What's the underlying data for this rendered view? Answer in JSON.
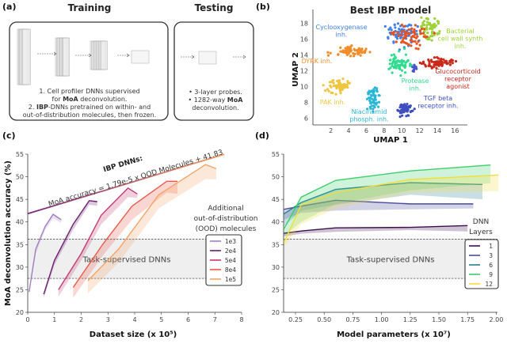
{
  "panel_labels": [
    "(a)",
    "(b)",
    "(c)",
    "(d)"
  ],
  "panel_a": {
    "training_title": "Training",
    "testing_title": "Testing",
    "training_lines": [
      [
        "1. Cell profiler DNNs supervised",
        "",
        ""
      ],
      [
        "for ",
        "MoA",
        " deconvolution."
      ],
      [
        "2. ",
        "IBP",
        "-DNNs pretrained on within- and"
      ],
      [
        "out-of-distribution molecules, then frozen.",
        "",
        ""
      ]
    ],
    "testing_lines": [
      [
        "• 3-layer probes.",
        "",
        ""
      ],
      [
        "• 1282-way ",
        "MoA",
        ""
      ],
      [
        "deconvolution.",
        "",
        ""
      ]
    ]
  },
  "chart_data": [
    {
      "panel": "b",
      "type": "scatter",
      "title": "Best IBP model",
      "xlabel": "UMAP 1",
      "ylabel": "UMAP 2",
      "xticks": [
        2,
        4,
        6,
        8,
        10,
        12,
        14,
        16
      ],
      "yticks": [
        6,
        8,
        10,
        12,
        14,
        16,
        18
      ],
      "clusters": [
        {
          "label": "Cyclooxygenase inh.",
          "lines": [
            "Cyclooxygenase",
            "inh."
          ],
          "color": "#3f80e8",
          "center": [
            10,
            16.6
          ],
          "spread": [
            1.2,
            1.1
          ],
          "n": 70
        },
        {
          "label": "Bacterial cell wall synth inh.",
          "lines": [
            "Bacterial",
            "cell wall synth",
            "inh."
          ],
          "color": "#9ed23a",
          "center": [
            13.2,
            17.3
          ],
          "spread": [
            0.9,
            1.0
          ],
          "n": 60
        },
        {
          "label": "",
          "lines": [],
          "color": "#e8521f",
          "center": [
            11,
            16.3
          ],
          "spread": [
            1.6,
            1.1
          ],
          "n": 60
        },
        {
          "label": "DYRK inh.",
          "lines": [
            "DYRK inh."
          ],
          "color": "#f28c28",
          "center": [
            4.2,
            14.4
          ],
          "spread": [
            1.7,
            0.55
          ],
          "n": 60
        },
        {
          "label": "Glucocorticoid receptor agonist",
          "lines": [
            "Glucocorticoid",
            "receptor",
            "agonist"
          ],
          "color": "#c9281a",
          "center": [
            14.1,
            13.0
          ],
          "spread": [
            1.6,
            0.5
          ],
          "n": 70
        },
        {
          "label": "Protease inh.",
          "lines": [
            "Protease",
            "inh."
          ],
          "color": "#2fdc8f",
          "center": [
            9.7,
            12.9
          ],
          "spread": [
            0.9,
            1.1
          ],
          "n": 70
        },
        {
          "label": "",
          "lines": [],
          "color": "#4a55c8",
          "center": [
            11.4,
            12.4
          ],
          "spread": [
            0.3,
            0.5
          ],
          "n": 12
        },
        {
          "label": "PAK inh.",
          "lines": [
            "PAK inh."
          ],
          "color": "#efc640",
          "center": [
            2.8,
            10.0
          ],
          "spread": [
            1.0,
            0.8
          ],
          "n": 55
        },
        {
          "label": "Niacinamid phosph. inh.",
          "lines": [
            "Niacinamid",
            "phosph. inh."
          ],
          "color": "#2bb6d6",
          "center": [
            6.7,
            8.8
          ],
          "spread": [
            0.6,
            1.5
          ],
          "n": 55
        },
        {
          "label": "TGF beta receptor inh.",
          "lines": [
            "TGF beta",
            "receptor inh."
          ],
          "color": "#3f4ebf",
          "center": [
            10.4,
            7.0
          ],
          "spread": [
            0.75,
            0.7
          ],
          "n": 55
        }
      ]
    },
    {
      "panel": "c",
      "type": "line",
      "xlabel": "Dataset size (x 10⁵)",
      "ylabel": "MoA deconvolution accuracy (%)",
      "xlim": [
        0,
        8
      ],
      "ylim": [
        20,
        55
      ],
      "xticks": [
        0,
        1,
        2,
        3,
        4,
        5,
        6,
        7,
        8
      ],
      "yticks": [
        20,
        25,
        30,
        35,
        40,
        45,
        50,
        55
      ],
      "legend_title_lines": [
        "Additional",
        "out-of-distribution",
        "(OOD) molecules"
      ],
      "legend_position": "right",
      "fit": {
        "title": "IBP DNNs:",
        "label": "MoA accuracy = 1.79e-5 x OOD Molecules + 41.83",
        "slope_per_1e5": 1.79,
        "intercept": 41.83,
        "x": [
          0,
          7.35
        ],
        "color_start": "#7a2a7e",
        "color_end": "#f39a5a"
      },
      "baseline_band": {
        "label": "Task-supervised DNNs",
        "range": [
          27.5,
          36.2
        ]
      },
      "series": [
        {
          "name": "1e3",
          "color": "#a07fc0",
          "x": [
            0.05,
            0.3,
            0.65,
            0.95,
            1.25
          ],
          "y": [
            24.5,
            34,
            39,
            41.7,
            40.5
          ],
          "low": [
            24,
            33,
            38.2,
            40.8,
            39.8
          ]
        },
        {
          "name": "2e4",
          "color": "#6b1f6e",
          "x": [
            0.6,
            1.0,
            1.7,
            2.3,
            2.6
          ],
          "y": [
            24,
            31.5,
            39.5,
            44.7,
            44.5
          ],
          "low": [
            23.2,
            30.5,
            38.3,
            43.8,
            43.6
          ]
        },
        {
          "name": "5e4",
          "color": "#c23a72",
          "x": [
            1.15,
            2.0,
            2.75,
            3.75,
            4.1
          ],
          "y": [
            25,
            33,
            41.5,
            47.5,
            46.2
          ],
          "low": [
            23.5,
            31.5,
            39.5,
            45.5,
            45.3
          ]
        },
        {
          "name": "8e4",
          "color": "#ea5a4a",
          "x": [
            1.7,
            2.8,
            3.9,
            5.2,
            5.6
          ],
          "y": [
            25.5,
            35,
            43.5,
            49,
            49
          ],
          "low": [
            23.2,
            32.5,
            40.5,
            46.5,
            46.2
          ]
        },
        {
          "name": "1e5",
          "color": "#f4a468",
          "x": [
            2.25,
            3.4,
            4.9,
            6.65,
            7.05
          ],
          "y": [
            27,
            34,
            46,
            52.7,
            51.8
          ],
          "low": [
            24.2,
            31,
            43,
            49.5,
            49.4
          ]
        }
      ]
    },
    {
      "panel": "d",
      "type": "line",
      "xlabel": "Model parameters (x 10⁷)",
      "xlim": [
        0.146,
        2.02
      ],
      "ylim": [
        20,
        55
      ],
      "xticks": [
        "0.25",
        "0.50",
        "0.75",
        "1.00",
        "1.25",
        "1.50",
        "1.75",
        "2.00"
      ],
      "yticks": [
        20,
        25,
        30,
        35,
        40,
        45,
        50,
        55
      ],
      "legend_title_lines": [
        "DNN",
        "Layers"
      ],
      "legend_position": "right",
      "baseline_band": {
        "label": "Task-supervised DNNs",
        "range": [
          27.5,
          36.2
        ]
      },
      "series": [
        {
          "name": "1",
          "color": "#3b0f4f",
          "x": [
            0.15,
            0.3,
            0.6,
            1.25,
            1.75
          ],
          "y": [
            37.5,
            38,
            38.7,
            38.8,
            39.2
          ],
          "low": [
            36.8,
            37.4,
            37.8,
            38.2,
            37.9
          ]
        },
        {
          "name": "3",
          "color": "#4b4a9a",
          "x": [
            0.15,
            0.3,
            0.6,
            1.25,
            1.8
          ],
          "y": [
            42.8,
            43.5,
            44.8,
            44,
            44
          ],
          "low": [
            40.5,
            42,
            42.5,
            42.8,
            43
          ]
        },
        {
          "name": "6",
          "color": "#2a7f8e",
          "x": [
            0.15,
            0.3,
            0.6,
            1.25,
            1.88
          ],
          "y": [
            41.8,
            44.3,
            47.2,
            48.7,
            48.3
          ],
          "low": [
            39,
            42.5,
            43.8,
            46,
            45
          ]
        },
        {
          "name": "9",
          "color": "#3ccf6a",
          "x": [
            0.15,
            0.3,
            0.6,
            1.25,
            1.95
          ],
          "y": [
            38.5,
            45.5,
            49.2,
            51.3,
            52.6
          ],
          "low": [
            37,
            40,
            44,
            47,
            48.6
          ]
        },
        {
          "name": "12",
          "color": "#f3dd3a",
          "x": [
            0.15,
            0.3,
            0.6,
            1.25,
            2.02
          ],
          "y": [
            35.5,
            43.8,
            46.5,
            49.4,
            50.4
          ],
          "low": [
            34.5,
            39.5,
            43,
            46.5,
            46.8
          ]
        }
      ]
    }
  ]
}
